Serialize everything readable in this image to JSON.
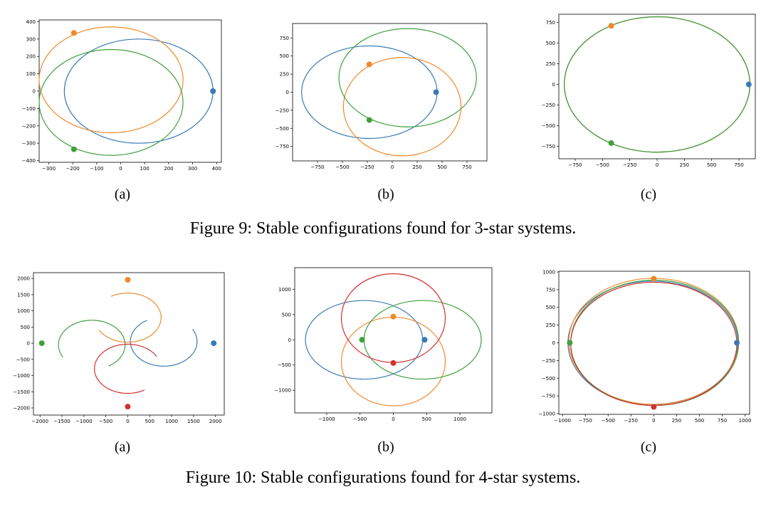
{
  "figure9": {
    "caption": "Figure 9: Stable configurations found for 3-star systems.",
    "sublabels": [
      "(a)",
      "(b)",
      "(c)"
    ]
  },
  "figure10": {
    "caption": "Figure 10: Stable configurations found for 4-star systems.",
    "sublabels": [
      "(a)",
      "(b)",
      "(c)"
    ]
  },
  "colors": {
    "blue": "#3a7ab5",
    "orange": "#ef8a2c",
    "green": "#3fa03c",
    "red": "#d3312f"
  },
  "chart_data": [
    {
      "id": "fig9a",
      "type": "scatter",
      "xlim": [
        -340,
        420
      ],
      "ylim": [
        -410,
        410
      ],
      "xticks": [
        -300,
        -200,
        -100,
        0,
        100,
        200,
        300,
        400
      ],
      "xtick_labels": [
        "−300",
        "−200",
        "−100",
        "0",
        "100",
        "200",
        "300",
        "400"
      ],
      "yticks": [
        -400,
        -300,
        -200,
        -100,
        0,
        100,
        200,
        300,
        400
      ],
      "ytick_labels": [
        "−400",
        "−300",
        "−200",
        "−100",
        "0",
        "100",
        "200",
        "300",
        "400"
      ],
      "series": [
        {
          "color": "blue",
          "orbit": {
            "cx": 75,
            "cy": 0,
            "rx": 310,
            "ry": 300
          },
          "points": [
            [
              385,
              0
            ]
          ]
        },
        {
          "color": "orange",
          "orbit": {
            "cx": -40,
            "cy": 65,
            "rx": 300,
            "ry": 305
          },
          "points": [
            [
              -195,
              335
            ]
          ]
        },
        {
          "color": "green",
          "orbit": {
            "cx": -40,
            "cy": -65,
            "rx": 300,
            "ry": 305
          },
          "points": [
            [
              -195,
              -335
            ]
          ]
        }
      ]
    },
    {
      "id": "fig9b",
      "type": "scatter",
      "xlim": [
        -1000,
        950
      ],
      "ylim": [
        -950,
        950
      ],
      "xticks": [
        -750,
        -500,
        -250,
        0,
        250,
        500,
        750
      ],
      "xtick_labels": [
        "−750",
        "−500",
        "−250",
        "0",
        "250",
        "500",
        "750"
      ],
      "yticks": [
        -750,
        -500,
        -250,
        0,
        250,
        500,
        750
      ],
      "ytick_labels": [
        "−750",
        "−500",
        "−250",
        "0",
        "250",
        "500",
        "750"
      ],
      "series": [
        {
          "color": "blue",
          "orbit": {
            "cx": -230,
            "cy": 0,
            "rx": 680,
            "ry": 640
          },
          "points": [
            [
              440,
              0
            ]
          ]
        },
        {
          "color": "orange",
          "orbit": {
            "cx": 100,
            "cy": -200,
            "rx": 590,
            "ry": 680
          },
          "points": [
            [
              -230,
              385
            ]
          ]
        },
        {
          "color": "green",
          "orbit": {
            "cx": 155,
            "cy": 200,
            "rx": 690,
            "ry": 680
          },
          "points": [
            [
              -230,
              -385
            ]
          ]
        }
      ]
    },
    {
      "id": "fig9c",
      "type": "scatter",
      "xlim": [
        -900,
        900
      ],
      "ylim": [
        -900,
        850
      ],
      "xticks": [
        -750,
        -500,
        -250,
        0,
        250,
        500,
        750
      ],
      "xtick_labels": [
        "−750",
        "−500",
        "−250",
        "0",
        "250",
        "500",
        "750"
      ],
      "yticks": [
        -750,
        -500,
        -250,
        0,
        250,
        500,
        750
      ],
      "ytick_labels": [
        "−750",
        "−500",
        "−250",
        "0",
        "250",
        "500",
        "750"
      ],
      "series": [
        {
          "color": "blue",
          "orbit": {
            "cx": 0,
            "cy": 0,
            "rx": 850,
            "ry": 820
          },
          "points": [
            [
              840,
              0
            ]
          ]
        },
        {
          "color": "orange",
          "orbit": {
            "cx": 0,
            "cy": 0,
            "rx": 850,
            "ry": 820
          },
          "points": [
            [
              -420,
              710
            ]
          ]
        },
        {
          "color": "green",
          "orbit": {
            "cx": 0,
            "cy": 0,
            "rx": 850,
            "ry": 820
          },
          "points": [
            [
              -420,
              -710
            ]
          ]
        }
      ]
    },
    {
      "id": "fig10a",
      "type": "scatter",
      "xlim": [
        -2150,
        2200
      ],
      "ylim": [
        -2220,
        2180
      ],
      "xticks": [
        -2000,
        -1500,
        -1000,
        -500,
        0,
        500,
        1000,
        1500,
        2000
      ],
      "xtick_labels": [
        "−2000",
        "−1500",
        "−1000",
        "−500",
        "0",
        "500",
        "1000",
        "1500",
        "2000"
      ],
      "yticks": [
        -2000,
        -1500,
        -1000,
        -500,
        0,
        500,
        1000,
        1500,
        2000
      ],
      "ytick_labels": [
        "−2000",
        "−1500",
        "−1000",
        "−500",
        "0",
        "500",
        "1000",
        "1500",
        "2000"
      ],
      "series": [
        {
          "color": "blue",
          "arc": {
            "cx": 820,
            "cy": 50,
            "r": 760,
            "from": 120,
            "to": 390
          },
          "points": [
            [
              1960,
              0
            ]
          ]
        },
        {
          "color": "orange",
          "arc": {
            "cx": 0,
            "cy": 790,
            "r": 760,
            "from": 210,
            "to": 480
          },
          "points": [
            [
              0,
              1960
            ]
          ]
        },
        {
          "color": "green",
          "arc": {
            "cx": -820,
            "cy": -50,
            "r": 760,
            "from": 300,
            "to": 570
          },
          "points": [
            [
              -1960,
              0
            ]
          ]
        },
        {
          "color": "red",
          "arc": {
            "cx": 0,
            "cy": -790,
            "r": 760,
            "from": 30,
            "to": 300
          },
          "points": [
            [
              0,
              -1960
            ]
          ]
        }
      ]
    },
    {
      "id": "fig10b",
      "type": "scatter",
      "xlim": [
        -1480,
        1480
      ],
      "ylim": [
        -1450,
        1430
      ],
      "xticks": [
        -1000,
        -500,
        0,
        500,
        1000
      ],
      "xtick_labels": [
        "−1000",
        "−500",
        "0",
        "500",
        "1000"
      ],
      "yticks": [
        -1000,
        -500,
        0,
        500,
        1000
      ],
      "ytick_labels": [
        "−1000",
        "−500",
        "0",
        "500",
        "1000"
      ],
      "series": [
        {
          "color": "blue",
          "orbit": {
            "cx": -440,
            "cy": 0,
            "rx": 880,
            "ry": 780
          },
          "points": [
            [
              470,
              0
            ]
          ]
        },
        {
          "color": "orange",
          "orbit": {
            "cx": 0,
            "cy": -430,
            "rx": 780,
            "ry": 880
          },
          "points": [
            [
              0,
              460
            ]
          ]
        },
        {
          "color": "green",
          "orbit": {
            "cx": 440,
            "cy": 0,
            "rx": 880,
            "ry": 780
          },
          "points": [
            [
              -470,
              0
            ]
          ]
        },
        {
          "color": "red",
          "orbit": {
            "cx": 0,
            "cy": 430,
            "rx": 780,
            "ry": 880
          },
          "points": [
            [
              0,
              -460
            ]
          ]
        }
      ]
    },
    {
      "id": "fig10c",
      "type": "scatter",
      "xlim": [
        -1040,
        1050
      ],
      "ylim": [
        -1010,
        1010
      ],
      "xticks": [
        -1000,
        -750,
        -500,
        -250,
        0,
        250,
        500,
        750,
        1000
      ],
      "xtick_labels": [
        "−1000",
        "−750",
        "−500",
        "−250",
        "0",
        "250",
        "500",
        "750",
        "1000"
      ],
      "yticks": [
        -1000,
        -750,
        -500,
        -250,
        0,
        250,
        500,
        750,
        1000
      ],
      "ytick_labels": [
        "−1000",
        "−750",
        "−500",
        "−250",
        "0",
        "250",
        "500",
        "750",
        "1000"
      ],
      "series": [
        {
          "color": "blue",
          "orbit": {
            "cx": -10,
            "cy": 0,
            "rx": 930,
            "ry": 870
          },
          "points": [
            [
              910,
              0
            ]
          ]
        },
        {
          "color": "orange",
          "orbit": {
            "cx": 0,
            "cy": 20,
            "rx": 930,
            "ry": 890
          },
          "points": [
            [
              0,
              905
            ]
          ]
        },
        {
          "color": "green",
          "orbit": {
            "cx": 10,
            "cy": 0,
            "rx": 920,
            "ry": 885
          },
          "points": [
            [
              -920,
              0
            ]
          ]
        },
        {
          "color": "red",
          "orbit": {
            "cx": 0,
            "cy": -15,
            "rx": 910,
            "ry": 870
          },
          "points": [
            [
              0,
              -905
            ]
          ]
        }
      ]
    }
  ]
}
